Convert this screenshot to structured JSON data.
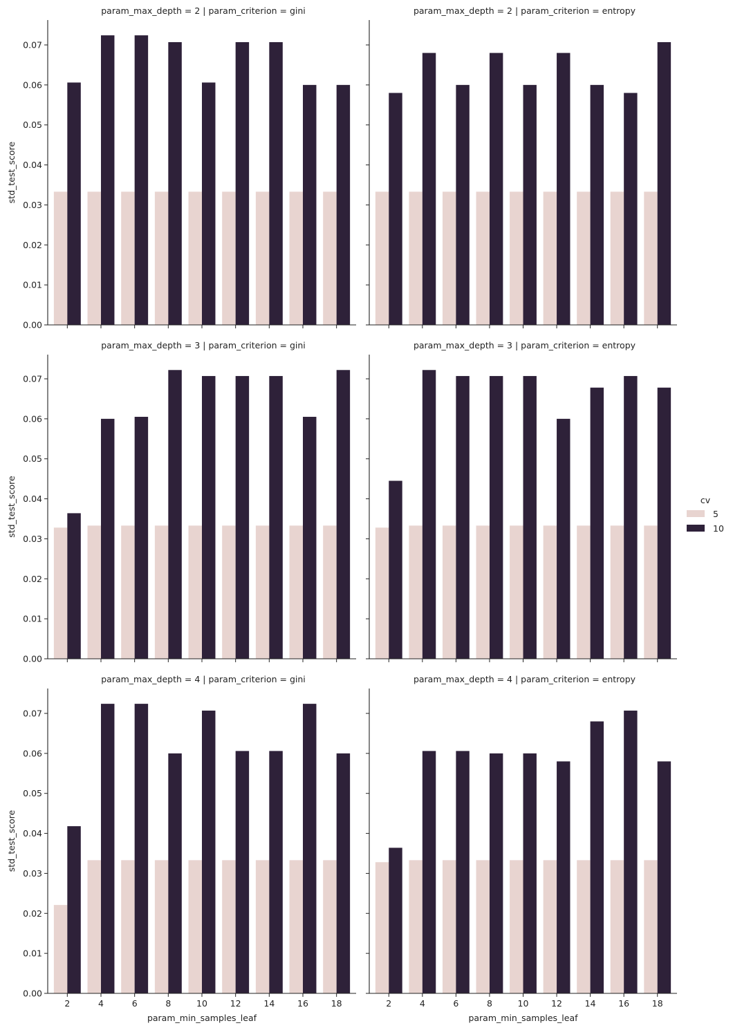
{
  "figure": {
    "legend": {
      "title": "cv",
      "entries": [
        {
          "label": "5",
          "color": "#e8d4d0"
        },
        {
          "label": "10",
          "color": "#2e2139"
        }
      ]
    },
    "ylabel": "std_test_score",
    "xlabel": "param_min_samples_leaf",
    "ytick_labels": [
      "0.00",
      "0.01",
      "0.02",
      "0.03",
      "0.04",
      "0.05",
      "0.06",
      "0.07"
    ],
    "xtick_labels": [
      "2",
      "4",
      "6",
      "8",
      "10",
      "12",
      "14",
      "16",
      "18"
    ]
  },
  "chart_data": [
    {
      "type": "bar",
      "title": "param_max_depth = 2 | param_criterion = gini",
      "xlabel": "",
      "ylabel": "std_test_score",
      "ylim": [
        0,
        0.076
      ],
      "categories": [
        "2",
        "4",
        "6",
        "8",
        "10",
        "12",
        "14",
        "16",
        "18"
      ],
      "series": [
        {
          "name": "5",
          "values": [
            0.0333,
            0.0333,
            0.0333,
            0.0333,
            0.0333,
            0.0333,
            0.0333,
            0.0333,
            0.0333
          ]
        },
        {
          "name": "10",
          "values": [
            0.0606,
            0.0724,
            0.0724,
            0.0707,
            0.0606,
            0.0707,
            0.0707,
            0.06,
            0.06
          ]
        }
      ]
    },
    {
      "type": "bar",
      "title": "param_max_depth = 2 | param_criterion = entropy",
      "xlabel": "",
      "ylabel": "",
      "ylim": [
        0,
        0.076
      ],
      "categories": [
        "2",
        "4",
        "6",
        "8",
        "10",
        "12",
        "14",
        "16",
        "18"
      ],
      "series": [
        {
          "name": "5",
          "values": [
            0.0333,
            0.0333,
            0.0333,
            0.0333,
            0.0333,
            0.0333,
            0.0333,
            0.0333,
            0.0333
          ]
        },
        {
          "name": "10",
          "values": [
            0.058,
            0.068,
            0.06,
            0.068,
            0.06,
            0.068,
            0.06,
            0.058,
            0.0707
          ]
        }
      ]
    },
    {
      "type": "bar",
      "title": "param_max_depth = 3 | param_criterion = gini",
      "xlabel": "",
      "ylabel": "std_test_score",
      "ylim": [
        0,
        0.076
      ],
      "categories": [
        "2",
        "4",
        "6",
        "8",
        "10",
        "12",
        "14",
        "16",
        "18"
      ],
      "series": [
        {
          "name": "5",
          "values": [
            0.0328,
            0.0333,
            0.0333,
            0.0333,
            0.0333,
            0.0333,
            0.0333,
            0.0333,
            0.0333
          ]
        },
        {
          "name": "10",
          "values": [
            0.0364,
            0.06,
            0.0605,
            0.0722,
            0.0707,
            0.0707,
            0.0707,
            0.0605,
            0.0722
          ]
        }
      ]
    },
    {
      "type": "bar",
      "title": "param_max_depth = 3 | param_criterion = entropy",
      "xlabel": "",
      "ylabel": "",
      "ylim": [
        0,
        0.076
      ],
      "categories": [
        "2",
        "4",
        "6",
        "8",
        "10",
        "12",
        "14",
        "16",
        "18"
      ],
      "series": [
        {
          "name": "5",
          "values": [
            0.0328,
            0.0333,
            0.0333,
            0.0333,
            0.0333,
            0.0333,
            0.0333,
            0.0333,
            0.0333
          ]
        },
        {
          "name": "10",
          "values": [
            0.0445,
            0.0722,
            0.0707,
            0.0707,
            0.0707,
            0.06,
            0.0678,
            0.0707,
            0.0678
          ]
        }
      ]
    },
    {
      "type": "bar",
      "title": "param_max_depth = 4 | param_criterion = gini",
      "xlabel": "param_min_samples_leaf",
      "ylabel": "std_test_score",
      "ylim": [
        0,
        0.076
      ],
      "categories": [
        "2",
        "4",
        "6",
        "8",
        "10",
        "12",
        "14",
        "16",
        "18"
      ],
      "series": [
        {
          "name": "5",
          "values": [
            0.0221,
            0.0333,
            0.0333,
            0.0333,
            0.0333,
            0.0333,
            0.0333,
            0.0333,
            0.0333
          ]
        },
        {
          "name": "10",
          "values": [
            0.0418,
            0.0724,
            0.0724,
            0.06,
            0.0707,
            0.0606,
            0.0606,
            0.0724,
            0.06
          ]
        }
      ]
    },
    {
      "type": "bar",
      "title": "param_max_depth = 4 | param_criterion = entropy",
      "xlabel": "param_min_samples_leaf",
      "ylabel": "",
      "ylim": [
        0,
        0.076
      ],
      "categories": [
        "2",
        "4",
        "6",
        "8",
        "10",
        "12",
        "14",
        "16",
        "18"
      ],
      "series": [
        {
          "name": "5",
          "values": [
            0.0328,
            0.0333,
            0.0333,
            0.0333,
            0.0333,
            0.0333,
            0.0333,
            0.0333,
            0.0333
          ]
        },
        {
          "name": "10",
          "values": [
            0.0364,
            0.0606,
            0.0606,
            0.06,
            0.06,
            0.058,
            0.068,
            0.0707,
            0.058
          ]
        }
      ]
    }
  ]
}
